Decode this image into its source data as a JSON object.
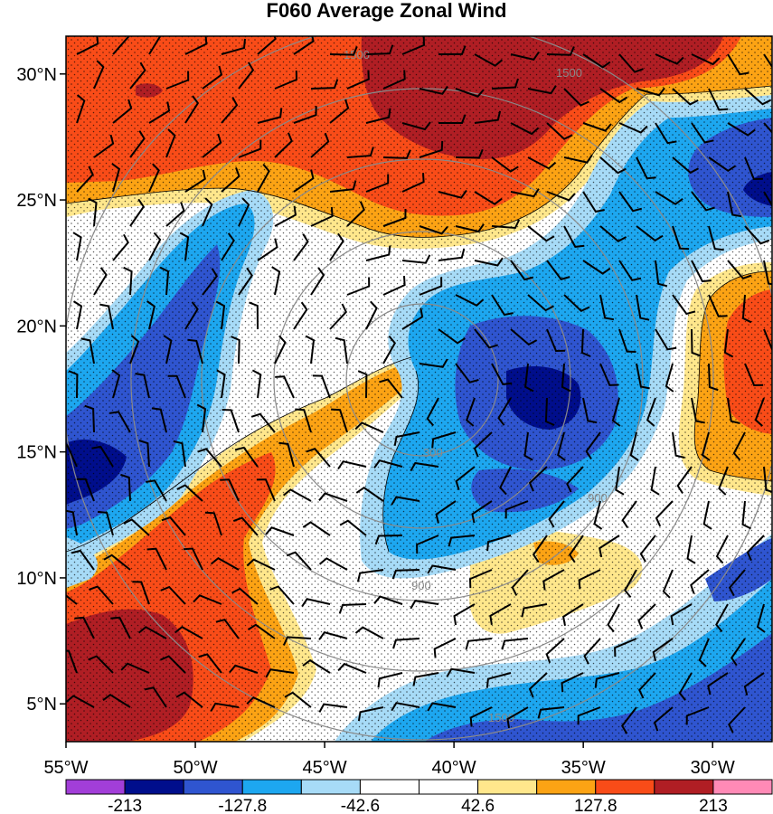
{
  "title": "F060 Average Zonal Wind",
  "map": {
    "lat_labels": [
      {
        "value": 30,
        "label": "30°N"
      },
      {
        "value": 25,
        "label": "25°N"
      },
      {
        "value": 20,
        "label": "20°N"
      },
      {
        "value": 15,
        "label": "15°N"
      },
      {
        "value": 10,
        "label": "10°N"
      },
      {
        "value": 5,
        "label": "5°N"
      }
    ],
    "lon_labels": [
      {
        "value": -55,
        "label": "55°W"
      },
      {
        "value": -50,
        "label": "50°W"
      },
      {
        "value": -45,
        "label": "45°W"
      },
      {
        "value": -40,
        "label": "40°W"
      },
      {
        "value": -35,
        "label": "35°W"
      },
      {
        "value": -30,
        "label": "30°W"
      }
    ],
    "lat_range": [
      3.5,
      31.5
    ],
    "lon_range": [
      -55.0,
      -27.7
    ],
    "range_rings": [
      {
        "radius_km": 300,
        "label": "300"
      },
      {
        "radius_km": 600,
        "label": "600"
      },
      {
        "radius_km": 900,
        "label": "900"
      },
      {
        "radius_km": 1200,
        "label": "1200"
      },
      {
        "radius_km": 1500,
        "label": "1500"
      }
    ],
    "ring_center": {
      "lon": -40.5,
      "lat": 17.3
    }
  },
  "colorbar": {
    "colors": [
      "#a23ed8",
      "#000e8c",
      "#2f55d0",
      "#1da7f0",
      "#a7dbf7",
      "#ffffff",
      "#ffffff",
      "#ffe78c",
      "#fca314",
      "#f94c18",
      "#b01e24",
      "#ff8ab6"
    ],
    "labels": [
      "-213",
      "-127.8",
      "-42.6",
      "42.6",
      "127.8",
      "213"
    ],
    "label_values": [
      -213,
      -127.8,
      -42.6,
      42.6,
      127.8,
      213
    ]
  }
}
